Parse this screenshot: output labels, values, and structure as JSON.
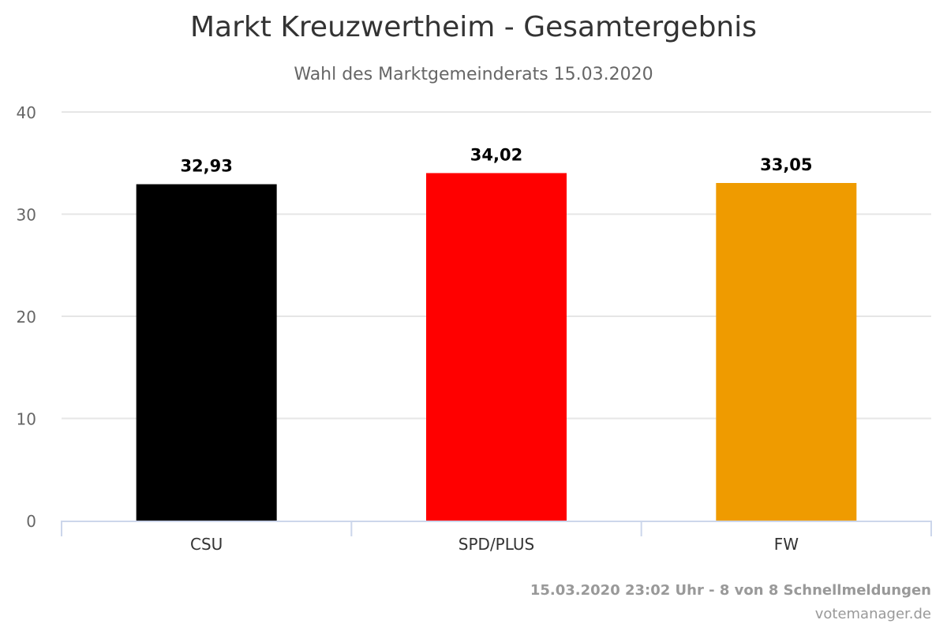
{
  "chart_data": {
    "type": "bar",
    "title": "Markt Kreuzwertheim - Gesamtergebnis",
    "subtitle": "Wahl des Marktgemeinderats 15.03.2020",
    "categories": [
      "CSU",
      "SPD/PLUS",
      "FW"
    ],
    "values": [
      32.93,
      34.02,
      33.05
    ],
    "value_labels": [
      "32,93",
      "34,02",
      "33,05"
    ],
    "colors": [
      "#000000",
      "#ff0000",
      "#ef9b00"
    ],
    "ylim": [
      0,
      40
    ],
    "yticks": [
      0,
      10,
      20,
      30,
      40
    ],
    "xlabel": "",
    "ylabel": "",
    "grid": true,
    "legend": "none"
  },
  "credits": {
    "date_line": "15.03.2020 23:02 Uhr - 8 von 8 Schnellmeldungen",
    "source": "votemanager.de"
  }
}
